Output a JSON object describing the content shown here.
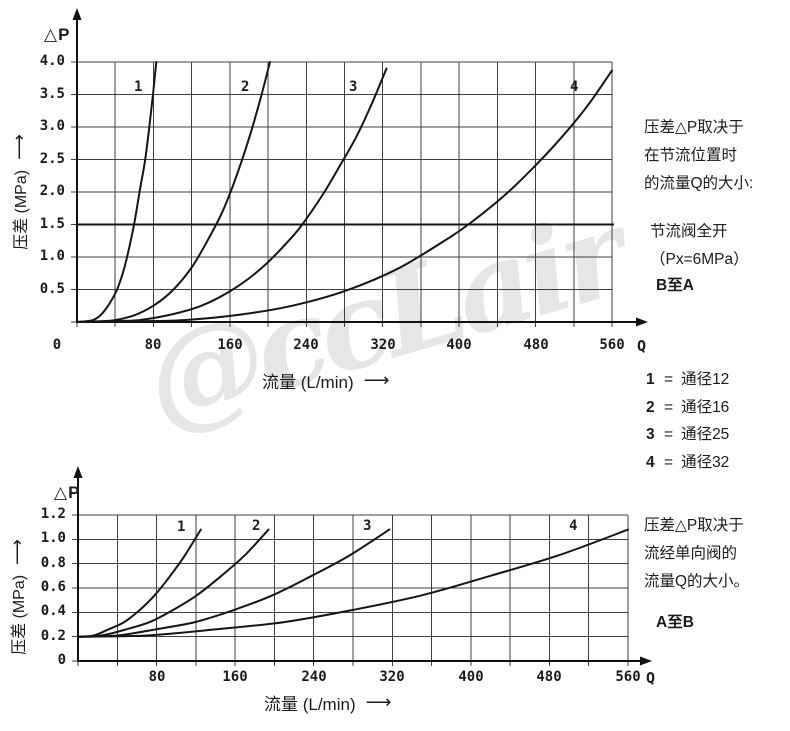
{
  "watermark": "@ccLair",
  "glyphs": {
    "arrow": "⟶",
    "eq": "="
  },
  "colors": {
    "curve": "#151515",
    "grid": "#3f3f3f",
    "axis": "#111111",
    "emphasis": "#161616",
    "text": "#1c1c1c",
    "watermark": "#e6e6e6"
  },
  "chart_data": [
    {
      "id": "throttle-fully-open",
      "type": "line",
      "y_axis_symbol": "△P",
      "ylabel": "压差 (MPa)",
      "xlabel": "流量 (L/min)",
      "x_end_symbol": "Q",
      "xlim": [
        0,
        560
      ],
      "ylim": [
        0,
        4
      ],
      "x_grid_step": 40,
      "y_grid_step": 0.5,
      "grid": true,
      "legend_position": "right",
      "x_ticks": [
        "0",
        "80",
        "160",
        "240",
        "320",
        "400",
        "480",
        "560"
      ],
      "y_ticks": [
        "4.0",
        "3.5",
        "3.0",
        "2.5",
        "2.0",
        "1.5",
        "1.0",
        "0.5"
      ],
      "emphasis_line_y": 1.5,
      "series": [
        {
          "name": "1",
          "size_label": "通径12",
          "label_at": [
            66,
            3.6
          ],
          "points": [
            [
              0,
              0
            ],
            [
              8,
              0.01
            ],
            [
              17,
              0.03
            ],
            [
              25,
              0.11
            ],
            [
              33,
              0.26
            ],
            [
              42,
              0.5
            ],
            [
              50,
              0.86
            ],
            [
              58,
              1.37
            ],
            [
              62,
              1.69
            ],
            [
              66,
              2.05
            ],
            [
              71,
              2.46
            ],
            [
              75,
              2.92
            ],
            [
              79,
              3.43
            ],
            [
              83,
              4.0
            ]
          ]
        },
        {
          "name": "2",
          "size_label": "通径16",
          "label_at": [
            178,
            3.6
          ],
          "points": [
            [
              0,
              0
            ],
            [
              20,
              0.01
            ],
            [
              40,
              0.03
            ],
            [
              61,
              0.11
            ],
            [
              81,
              0.26
            ],
            [
              101,
              0.5
            ],
            [
              121,
              0.86
            ],
            [
              141,
              1.37
            ],
            [
              152,
              1.69
            ],
            [
              162,
              2.05
            ],
            [
              172,
              2.46
            ],
            [
              182,
              2.92
            ],
            [
              192,
              3.43
            ],
            [
              202,
              4.0
            ]
          ]
        },
        {
          "name": "3",
          "size_label": "通径25",
          "label_at": [
            291,
            3.6
          ],
          "points": [
            [
              0,
              0
            ],
            [
              32,
              0.01
            ],
            [
              65,
              0.03
            ],
            [
              97,
              0.11
            ],
            [
              130,
              0.25
            ],
            [
              162,
              0.49
            ],
            [
              194,
              0.84
            ],
            [
              227,
              1.34
            ],
            [
              243,
              1.65
            ],
            [
              259,
              2.0
            ],
            [
              275,
              2.4
            ],
            [
              292,
              2.84
            ],
            [
              308,
              3.34
            ],
            [
              324,
              3.9
            ]
          ]
        },
        {
          "name": "4",
          "size_label": "通径32",
          "label_at": [
            522,
            3.6
          ],
          "points": [
            [
              0,
              0
            ],
            [
              56,
              0.01
            ],
            [
              112,
              0.03
            ],
            [
              169,
              0.11
            ],
            [
              225,
              0.25
            ],
            [
              281,
              0.48
            ],
            [
              337,
              0.83
            ],
            [
              393,
              1.33
            ],
            [
              422,
              1.64
            ],
            [
              450,
              1.98
            ],
            [
              478,
              2.38
            ],
            [
              506,
              2.82
            ],
            [
              534,
              3.32
            ],
            [
              560,
              3.87
            ]
          ]
        }
      ]
    },
    {
      "id": "check-valve",
      "type": "line",
      "y_axis_symbol": "△P",
      "ylabel": "压差 (MPa)",
      "xlabel": "流量 (L/min)",
      "x_end_symbol": "Q",
      "xlim": [
        0,
        560
      ],
      "ylim": [
        0,
        1.2
      ],
      "x_grid_step": 40,
      "y_grid_step": 0.2,
      "grid": true,
      "x_ticks": [
        "80",
        "160",
        "240",
        "320",
        "400",
        "480",
        "560"
      ],
      "y_ticks": [
        "1.2",
        "1.0",
        "0.8",
        "0.6",
        "0.4",
        "0.2",
        "0"
      ],
      "series": [
        {
          "name": "1",
          "size_label": "通径12",
          "label_at": [
            107,
            1.09
          ],
          "points": [
            [
              0,
              0.2
            ],
            [
              16,
              0.21
            ],
            [
              31,
              0.26
            ],
            [
              47,
              0.32
            ],
            [
              63,
              0.42
            ],
            [
              78,
              0.54
            ],
            [
              94,
              0.7
            ],
            [
              109,
              0.87
            ],
            [
              125,
              1.08
            ]
          ]
        },
        {
          "name": "2",
          "size_label": "通径16",
          "label_at": [
            183,
            1.1
          ],
          "points": [
            [
              0,
              0.2
            ],
            [
              24,
              0.21
            ],
            [
              49,
              0.26
            ],
            [
              73,
              0.32
            ],
            [
              97,
              0.42
            ],
            [
              121,
              0.54
            ],
            [
              146,
              0.7
            ],
            [
              170,
              0.87
            ],
            [
              194,
              1.08
            ]
          ]
        },
        {
          "name": "3",
          "size_label": "通径25",
          "label_at": [
            296,
            1.1
          ],
          "points": [
            [
              0,
              0.2
            ],
            [
              40,
              0.21
            ],
            [
              79,
              0.26
            ],
            [
              119,
              0.32
            ],
            [
              159,
              0.42
            ],
            [
              198,
              0.54
            ],
            [
              238,
              0.7
            ],
            [
              277,
              0.87
            ],
            [
              317,
              1.08
            ]
          ]
        },
        {
          "name": "4",
          "size_label": "通径32",
          "label_at": [
            506,
            1.1
          ],
          "points": [
            [
              0,
              0.2
            ],
            [
              70,
              0.21
            ],
            [
              140,
              0.26
            ],
            [
              210,
              0.32
            ],
            [
              280,
              0.42
            ],
            [
              350,
              0.54
            ],
            [
              420,
              0.7
            ],
            [
              490,
              0.87
            ],
            [
              560,
              1.08
            ]
          ]
        }
      ]
    }
  ],
  "annotations": {
    "note1_lines": [
      "压差△P取决于",
      "在节流位置时",
      "的流量Q的大小:"
    ],
    "note1_sub_lines": [
      "节流阀全开",
      "（Px=6MPa）"
    ],
    "note1_direction": "B至A",
    "legend": [
      {
        "num": "1",
        "label": "通径12"
      },
      {
        "num": "2",
        "label": "通径16"
      },
      {
        "num": "3",
        "label": "通径25"
      },
      {
        "num": "4",
        "label": "通径32"
      }
    ],
    "note2_lines": [
      "压差△P取决于",
      "流经单向阀的",
      "流量Q的大小。"
    ],
    "note2_direction": "A至B"
  }
}
